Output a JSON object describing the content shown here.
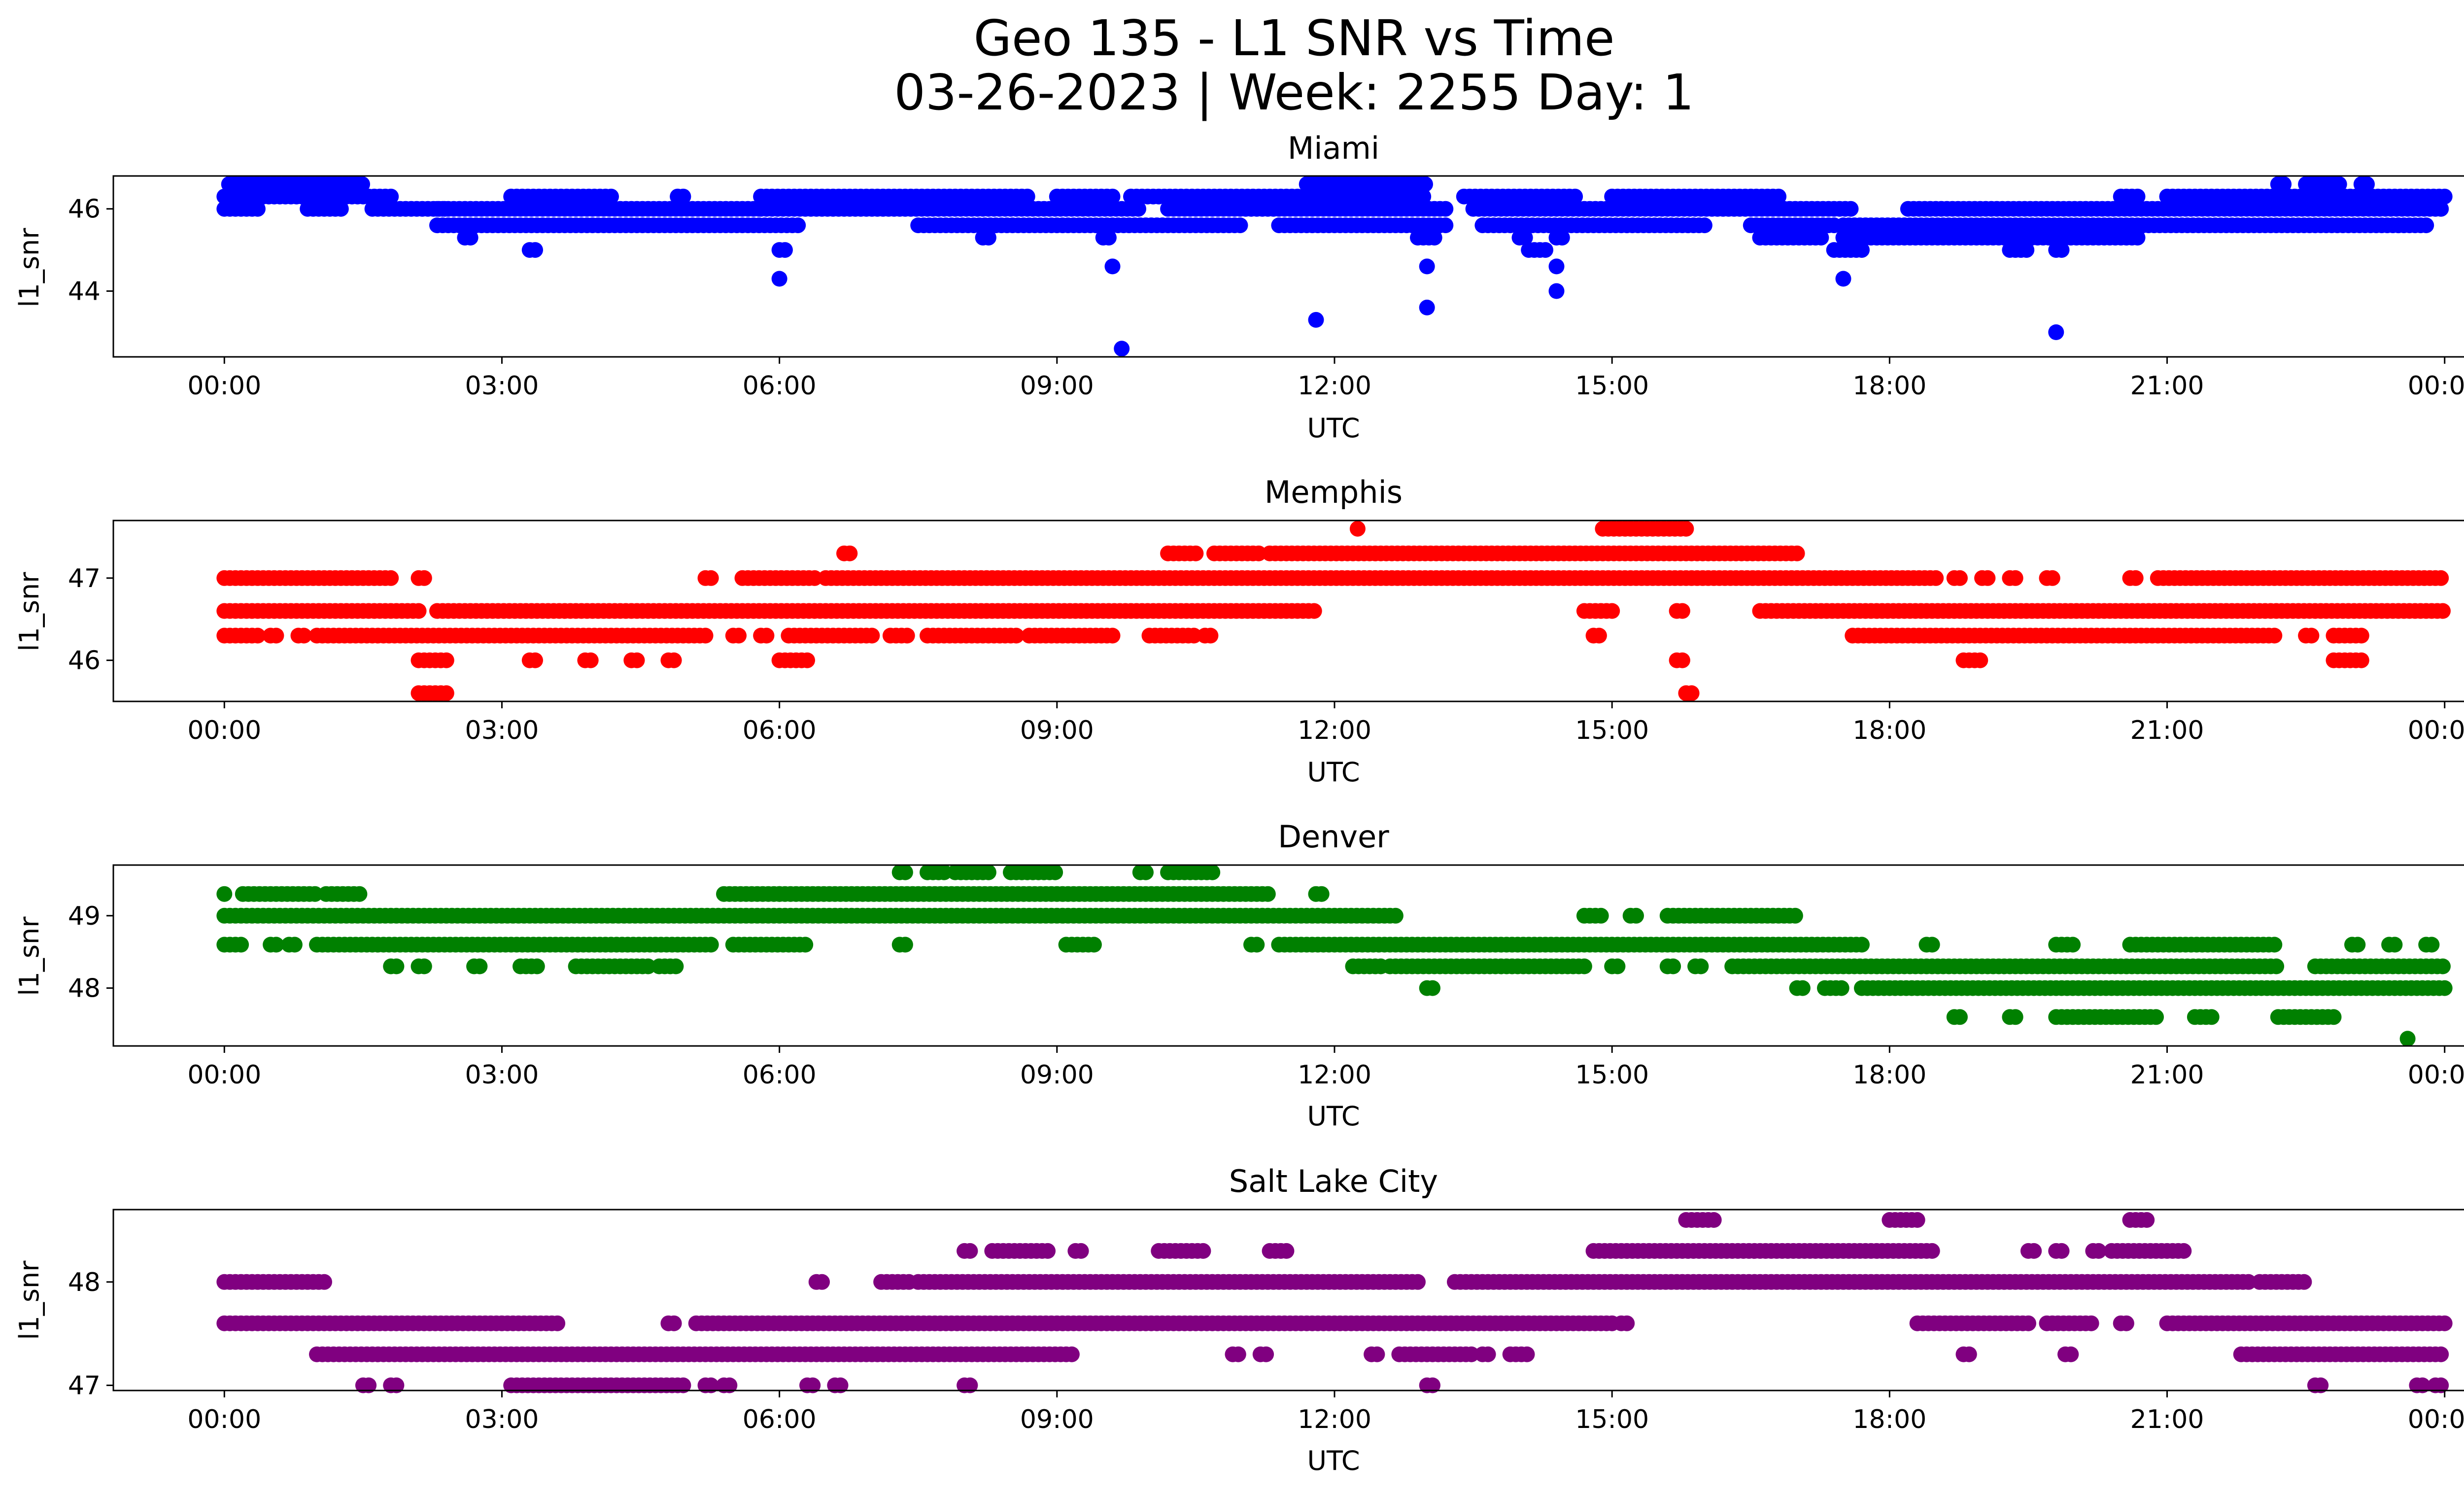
{
  "figure": {
    "title_line1": "Geo 135 - L1 SNR vs Time",
    "title_line2": "03-26-2023 | Week: 2255 Day: 1"
  },
  "chart_data": [
    {
      "type": "scatter",
      "title": "Miami",
      "xlabel": "UTC",
      "ylabel": "l1_snr",
      "color": "#0000ff",
      "x_ticks": [
        "00:00",
        "03:00",
        "06:00",
        "09:00",
        "12:00",
        "15:00",
        "18:00",
        "21:00",
        "00:00"
      ],
      "x_range_hours": [
        -1.2,
        25.2
      ],
      "y_ticks": [
        44,
        46
      ],
      "ylim": [
        42.4,
        46.8
      ],
      "bands": [
        {
          "y": 46.6,
          "segments": [
            [
              0.05,
              1.5
            ],
            [
              11.7,
              12.5
            ],
            [
              12.5,
              13.0
            ],
            [
              22.2,
              22.3
            ],
            [
              22.5,
              22.9
            ],
            [
              23.1,
              23.2
            ]
          ]
        },
        {
          "y": 46.3,
          "segments": [
            [
              0.0,
              1.8
            ],
            [
              3.1,
              4.2
            ],
            [
              4.9,
              5.0
            ],
            [
              5.8,
              8.7
            ],
            [
              9.0,
              9.6
            ],
            [
              9.8,
              11.7
            ],
            [
              11.7,
              13.0
            ],
            [
              13.4,
              14.6
            ],
            [
              15.0,
              16.8
            ],
            [
              20.5,
              20.7
            ],
            [
              21.0,
              24.0
            ]
          ]
        },
        {
          "y": 46.0,
          "segments": [
            [
              0.0,
              0.4
            ],
            [
              0.9,
              1.3
            ],
            [
              1.6,
              2.4
            ],
            [
              2.3,
              5.8
            ],
            [
              5.8,
              9.9
            ],
            [
              10.2,
              13.2
            ],
            [
              13.5,
              17.6
            ],
            [
              18.2,
              24.0
            ]
          ]
        },
        {
          "y": 45.6,
          "segments": [
            [
              2.3,
              6.2
            ],
            [
              7.5,
              11.0
            ],
            [
              11.4,
              13.2
            ],
            [
              13.6,
              16.0
            ],
            [
              16.5,
              17.4
            ],
            [
              17.5,
              23.8
            ]
          ]
        },
        {
          "y": 45.3,
          "segments": [
            [
              2.6,
              2.7
            ],
            [
              8.2,
              8.3
            ],
            [
              9.5,
              9.6
            ],
            [
              12.9,
              13.1
            ],
            [
              14.0,
              14.1
            ],
            [
              14.4,
              14.5
            ],
            [
              16.6,
              17.3
            ],
            [
              17.5,
              20.7
            ]
          ]
        },
        {
          "y": 45.0,
          "segments": [
            [
              3.3,
              3.4
            ],
            [
              6.0,
              6.1
            ],
            [
              14.1,
              14.3
            ],
            [
              17.4,
              17.7
            ],
            [
              19.3,
              19.5
            ],
            [
              19.8,
              19.9
            ]
          ]
        }
      ],
      "outliers": [
        [
          6.0,
          44.3
        ],
        [
          9.6,
          44.6
        ],
        [
          9.7,
          42.6
        ],
        [
          11.8,
          43.3
        ],
        [
          13.0,
          44.6
        ],
        [
          13.0,
          43.6
        ],
        [
          14.4,
          44.6
        ],
        [
          14.4,
          44.0
        ],
        [
          17.5,
          44.3
        ],
        [
          19.8,
          43.0
        ],
        [
          23.5,
          45.6
        ]
      ]
    },
    {
      "type": "scatter",
      "title": "Memphis",
      "xlabel": "UTC",
      "ylabel": "l1_snr",
      "color": "#ff0000",
      "x_ticks": [
        "00:00",
        "03:00",
        "06:00",
        "09:00",
        "12:00",
        "15:00",
        "18:00",
        "21:00",
        "00:00"
      ],
      "x_range_hours": [
        -1.2,
        25.2
      ],
      "y_ticks": [
        46,
        47
      ],
      "ylim": [
        45.5,
        47.7
      ],
      "bands": [
        {
          "y": 47.6,
          "segments": [
            [
              12.25,
              12.3
            ],
            [
              14.9,
              15.8
            ]
          ]
        },
        {
          "y": 47.3,
          "segments": [
            [
              6.7,
              6.8
            ],
            [
              10.2,
              10.5
            ],
            [
              10.7,
              11.2
            ],
            [
              11.3,
              17.0
            ]
          ]
        },
        {
          "y": 47.0,
          "segments": [
            [
              0.0,
              1.8
            ],
            [
              2.1,
              2.2
            ],
            [
              5.2,
              5.3
            ],
            [
              5.6,
              6.4
            ],
            [
              6.5,
              18.5
            ],
            [
              18.7,
              18.8
            ],
            [
              19.0,
              19.1
            ],
            [
              19.3,
              19.4
            ],
            [
              19.7,
              19.8
            ],
            [
              20.6,
              20.7
            ],
            [
              20.9,
              24.0
            ]
          ]
        },
        {
          "y": 46.6,
          "segments": [
            [
              0.0,
              2.1
            ],
            [
              2.3,
              11.8
            ],
            [
              14.7,
              15.0
            ],
            [
              15.7,
              15.8
            ],
            [
              16.6,
              24.0
            ]
          ]
        },
        {
          "y": 46.3,
          "segments": [
            [
              0.0,
              0.4
            ],
            [
              0.5,
              0.6
            ],
            [
              0.8,
              0.9
            ],
            [
              1.0,
              5.2
            ],
            [
              5.5,
              5.6
            ],
            [
              5.8,
              5.9
            ],
            [
              6.1,
              7.0
            ],
            [
              7.2,
              7.4
            ],
            [
              7.6,
              8.6
            ],
            [
              8.7,
              9.6
            ],
            [
              10.0,
              10.5
            ],
            [
              10.6,
              10.7
            ],
            [
              14.8,
              14.9
            ],
            [
              17.6,
              22.2
            ],
            [
              22.5,
              22.6
            ],
            [
              22.8,
              23.1
            ]
          ]
        },
        {
          "y": 46.0,
          "segments": [
            [
              2.1,
              2.4
            ],
            [
              3.3,
              3.4
            ],
            [
              3.9,
              4.0
            ],
            [
              4.4,
              4.5
            ],
            [
              4.8,
              4.9
            ],
            [
              6.0,
              6.3
            ],
            [
              15.7,
              15.8
            ],
            [
              18.8,
              19.0
            ],
            [
              22.8,
              23.1
            ]
          ]
        },
        {
          "y": 45.6,
          "segments": [
            [
              2.1,
              2.4
            ],
            [
              15.8,
              15.9
            ]
          ]
        }
      ],
      "outliers": []
    },
    {
      "type": "scatter",
      "title": "Denver",
      "xlabel": "UTC",
      "ylabel": "l1_snr",
      "color": "#008000",
      "x_ticks": [
        "00:00",
        "03:00",
        "06:00",
        "09:00",
        "12:00",
        "15:00",
        "18:00",
        "21:00",
        "00:00"
      ],
      "x_range_hours": [
        -1.2,
        25.2
      ],
      "y_ticks": [
        48,
        49
      ],
      "ylim": [
        47.2,
        49.7
      ],
      "bands": [
        {
          "y": 49.6,
          "segments": [
            [
              7.3,
              7.4
            ],
            [
              7.6,
              7.8
            ],
            [
              7.9,
              8.3
            ],
            [
              8.5,
              9.0
            ],
            [
              9.9,
              10.0
            ],
            [
              10.2,
              10.7
            ]
          ]
        },
        {
          "y": 49.3,
          "segments": [
            [
              0.0,
              0.05
            ],
            [
              0.2,
              1.0
            ],
            [
              1.1,
              1.5
            ],
            [
              5.4,
              6.0
            ],
            [
              6.0,
              11.3
            ],
            [
              11.8,
              11.9
            ]
          ]
        },
        {
          "y": 49.0,
          "segments": [
            [
              0.0,
              12.7
            ],
            [
              14.7,
              14.9
            ],
            [
              15.2,
              15.3
            ],
            [
              15.6,
              17.0
            ]
          ]
        },
        {
          "y": 48.6,
          "segments": [
            [
              0.0,
              0.2
            ],
            [
              0.5,
              0.6
            ],
            [
              0.7,
              0.8
            ],
            [
              1.0,
              5.3
            ],
            [
              5.5,
              6.3
            ],
            [
              7.3,
              7.4
            ],
            [
              9.1,
              9.4
            ],
            [
              11.1,
              11.2
            ],
            [
              11.4,
              17.7
            ],
            [
              18.4,
              18.5
            ],
            [
              19.8,
              20.0
            ],
            [
              20.6,
              22.2
            ],
            [
              23.0,
              23.1
            ],
            [
              23.4,
              23.5
            ],
            [
              23.8,
              23.9
            ]
          ]
        },
        {
          "y": 48.3,
          "segments": [
            [
              1.8,
              1.9
            ],
            [
              2.1,
              2.2
            ],
            [
              2.7,
              2.8
            ],
            [
              3.2,
              3.4
            ],
            [
              3.8,
              4.6
            ],
            [
              4.7,
              4.9
            ],
            [
              12.2,
              12.5
            ],
            [
              12.6,
              14.7
            ],
            [
              15.0,
              15.1
            ],
            [
              15.6,
              15.7
            ],
            [
              15.9,
              16.0
            ],
            [
              16.3,
              22.2
            ],
            [
              22.6,
              24.0
            ]
          ]
        },
        {
          "y": 48.0,
          "segments": [
            [
              13.0,
              13.1
            ],
            [
              17.0,
              17.1
            ],
            [
              17.3,
              17.5
            ],
            [
              17.7,
              24.0
            ]
          ]
        },
        {
          "y": 47.6,
          "segments": [
            [
              18.7,
              18.8
            ],
            [
              19.3,
              19.4
            ],
            [
              19.8,
              20.9
            ],
            [
              21.3,
              21.5
            ],
            [
              22.2,
              22.8
            ]
          ]
        }
      ],
      "outliers": [
        [
          23.6,
          47.3
        ]
      ]
    },
    {
      "type": "scatter",
      "title": "Salt Lake City",
      "xlabel": "UTC",
      "ylabel": "l1_snr",
      "color": "#800080",
      "x_ticks": [
        "00:00",
        "03:00",
        "06:00",
        "09:00",
        "12:00",
        "15:00",
        "18:00",
        "21:00",
        "00:00"
      ],
      "x_range_hours": [
        -1.2,
        25.2
      ],
      "y_ticks": [
        47,
        48
      ],
      "ylim": [
        46.95,
        48.7
      ],
      "bands": [
        {
          "y": 48.6,
          "segments": [
            [
              15.8,
              16.1
            ],
            [
              18.0,
              18.3
            ],
            [
              20.6,
              20.8
            ]
          ]
        },
        {
          "y": 48.3,
          "segments": [
            [
              8.0,
              8.1
            ],
            [
              8.3,
              8.9
            ],
            [
              9.2,
              9.3
            ],
            [
              10.1,
              10.6
            ],
            [
              11.3,
              11.5
            ],
            [
              14.8,
              18.5
            ],
            [
              19.5,
              19.6
            ],
            [
              19.8,
              19.9
            ],
            [
              20.2,
              20.3
            ],
            [
              20.4,
              21.2
            ]
          ]
        },
        {
          "y": 48.0,
          "segments": [
            [
              0.0,
              1.1
            ],
            [
              6.4,
              6.5
            ],
            [
              7.1,
              7.4
            ],
            [
              7.5,
              12.9
            ],
            [
              13.3,
              21.9
            ],
            [
              22.0,
              22.5
            ]
          ]
        },
        {
          "y": 47.6,
          "segments": [
            [
              0.0,
              3.6
            ],
            [
              4.8,
              4.9
            ],
            [
              5.1,
              15.0
            ],
            [
              15.1,
              15.2
            ],
            [
              18.3,
              19.5
            ],
            [
              19.7,
              20.2
            ],
            [
              20.5,
              20.6
            ],
            [
              21.0,
              24.0
            ]
          ]
        },
        {
          "y": 47.3,
          "segments": [
            [
              1.0,
              9.2
            ],
            [
              10.9,
              11.0
            ],
            [
              11.2,
              11.3
            ],
            [
              12.4,
              12.5
            ],
            [
              12.7,
              13.5
            ],
            [
              13.6,
              13.7
            ],
            [
              13.9,
              14.1
            ],
            [
              18.8,
              18.9
            ],
            [
              19.9,
              20.0
            ],
            [
              21.8,
              24.0
            ]
          ]
        },
        {
          "y": 47.0,
          "segments": [
            [
              1.5,
              1.6
            ],
            [
              1.8,
              1.9
            ],
            [
              3.1,
              5.0
            ],
            [
              5.2,
              5.3
            ],
            [
              5.4,
              5.5
            ],
            [
              6.3,
              6.4
            ],
            [
              6.6,
              6.7
            ],
            [
              8.0,
              8.1
            ],
            [
              13.0,
              13.1
            ],
            [
              22.6,
              22.7
            ],
            [
              23.7,
              23.8
            ],
            [
              23.9,
              24.0
            ]
          ]
        }
      ],
      "outliers": []
    }
  ]
}
